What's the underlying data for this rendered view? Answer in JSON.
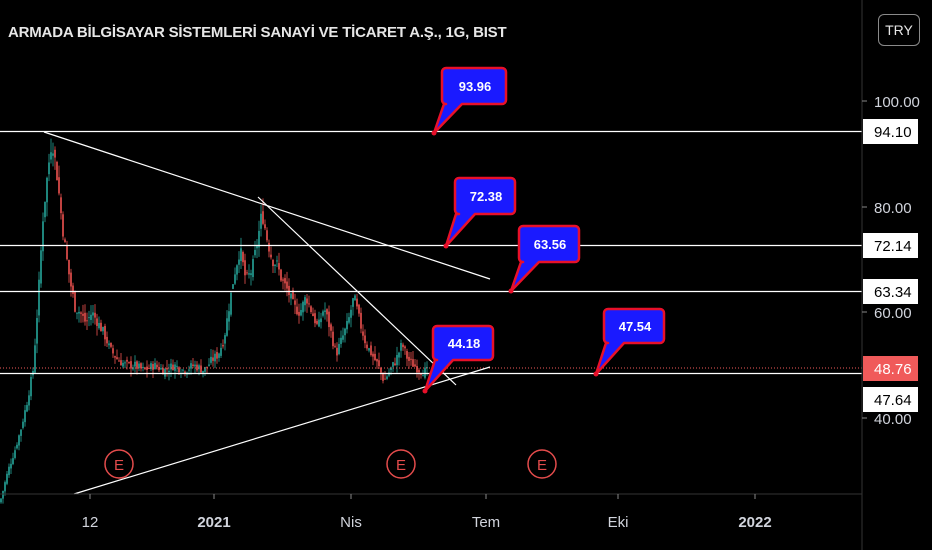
{
  "chart_title": "ARMADA BİLGİSAYAR SİSTEMLERİ SANAYİ VE TİCARET A.Ş., 1G, BIST",
  "currency_label": "TRY",
  "colors": {
    "background": "#000000",
    "up": "#26a69a",
    "down": "#ef5350",
    "line": "#ffffff",
    "callout_fill": "#1a1aff",
    "callout_border": "#e8102a",
    "current_price": "#f05a5a"
  },
  "chart_data": {
    "type": "candlestick",
    "symbol": "ARMADA",
    "interval": "1G",
    "exchange": "BIST",
    "x_ticks": [
      "12",
      "2021",
      "Nis",
      "Tem",
      "Eki",
      "2022"
    ],
    "y_ticks": [
      "100.00",
      "80.00",
      "60.00",
      "40.00"
    ],
    "ylim": [
      22,
      106
    ],
    "horizontal_levels": [
      "94.10",
      "72.14",
      "63.34",
      "47.64"
    ],
    "current_price": "48.76",
    "callouts": [
      "93.96",
      "72.38",
      "63.56",
      "44.18",
      "47.54"
    ],
    "earnings_markers": [
      "E",
      "E",
      "E"
    ],
    "price_path": [
      [
        0,
        24
      ],
      [
        8,
        30
      ],
      [
        15,
        34
      ],
      [
        21,
        38
      ],
      [
        27,
        43
      ],
      [
        33,
        49
      ],
      [
        38,
        62
      ],
      [
        43,
        78
      ],
      [
        48,
        87
      ],
      [
        52,
        93
      ],
      [
        57,
        86
      ],
      [
        62,
        77
      ],
      [
        66,
        71
      ],
      [
        70,
        66
      ],
      [
        75,
        61
      ],
      [
        80,
        60
      ],
      [
        86,
        58
      ],
      [
        92,
        60
      ],
      [
        98,
        58
      ],
      [
        104,
        56
      ],
      [
        110,
        53
      ],
      [
        118,
        51
      ],
      [
        126,
        50
      ],
      [
        134,
        50
      ],
      [
        144,
        49
      ],
      [
        154,
        50
      ],
      [
        164,
        49
      ],
      [
        174,
        50
      ],
      [
        184,
        49
      ],
      [
        194,
        50
      ],
      [
        204,
        49
      ],
      [
        212,
        51
      ],
      [
        218,
        52
      ],
      [
        224,
        55
      ],
      [
        229,
        61
      ],
      [
        234,
        67
      ],
      [
        240,
        72
      ],
      [
        246,
        66
      ],
      [
        252,
        68
      ],
      [
        258,
        74
      ],
      [
        262,
        79
      ],
      [
        267,
        74
      ],
      [
        272,
        70
      ],
      [
        277,
        69
      ],
      [
        282,
        66
      ],
      [
        288,
        64
      ],
      [
        294,
        61
      ],
      [
        300,
        60
      ],
      [
        306,
        63
      ],
      [
        312,
        60
      ],
      [
        318,
        57
      ],
      [
        324,
        61
      ],
      [
        330,
        57
      ],
      [
        336,
        52
      ],
      [
        342,
        55
      ],
      [
        348,
        58
      ],
      [
        354,
        63
      ],
      [
        360,
        58
      ],
      [
        366,
        54
      ],
      [
        372,
        52
      ],
      [
        378,
        50
      ],
      [
        384,
        47
      ],
      [
        390,
        49
      ],
      [
        396,
        51
      ],
      [
        402,
        54
      ],
      [
        408,
        51
      ],
      [
        414,
        50
      ],
      [
        420,
        49
      ],
      [
        428,
        48.8
      ]
    ]
  }
}
